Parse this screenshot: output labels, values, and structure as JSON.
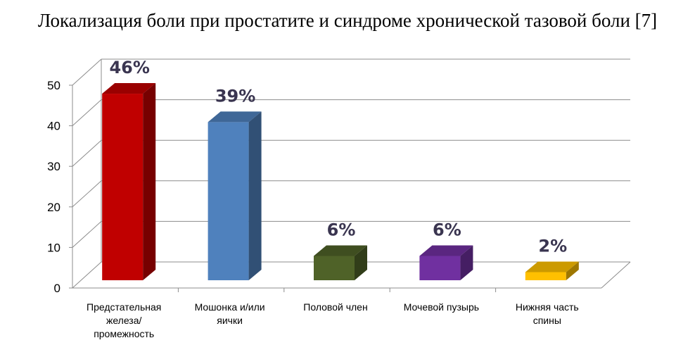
{
  "chart_data": {
    "type": "bar",
    "title": "Локализация боли при простатите и синдроме хронической тазовой боли [7]",
    "categories": [
      "Предстательная железа/ промежность",
      "Мошонка и/или яички",
      "Половой член",
      "Мочевой пузырь",
      "Нижняя часть спины"
    ],
    "category_lines": [
      [
        "Предстательная",
        "железа/",
        "промежность"
      ],
      [
        "Мошонка и/или",
        "яички"
      ],
      [
        "Половой член"
      ],
      [
        "Мочевой пузырь"
      ],
      [
        "Нижняя часть",
        "спины"
      ]
    ],
    "values": [
      46,
      39,
      6,
      6,
      2
    ],
    "data_labels": [
      "46%",
      "39%",
      "6%",
      "6%",
      "2%"
    ],
    "colors": [
      "#c00000",
      "#4f81bd",
      "#4f6228",
      "#7030a0",
      "#ffc000"
    ],
    "ylim": [
      0,
      50
    ],
    "yticks": [
      "0",
      "10",
      "20",
      "30",
      "40",
      "50"
    ],
    "grid": true,
    "xlabel": "",
    "ylabel": ""
  }
}
